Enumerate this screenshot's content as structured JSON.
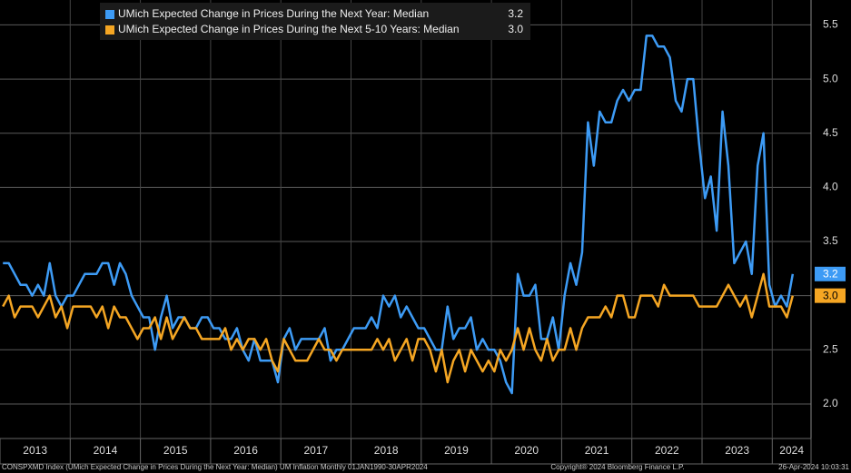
{
  "chart_data": {
    "type": "line",
    "categories": [
      "2013",
      null,
      null,
      null,
      null,
      null,
      null,
      null,
      null,
      null,
      null,
      null,
      "2014",
      null,
      null,
      null,
      null,
      null,
      null,
      null,
      null,
      null,
      null,
      null,
      "2015",
      null,
      null,
      null,
      null,
      null,
      null,
      null,
      null,
      null,
      null,
      null,
      "2016",
      null,
      null,
      null,
      null,
      null,
      null,
      null,
      null,
      null,
      null,
      null,
      "2017",
      null,
      null,
      null,
      null,
      null,
      null,
      null,
      null,
      null,
      null,
      null,
      "2018",
      null,
      null,
      null,
      null,
      null,
      null,
      null,
      null,
      null,
      null,
      null,
      "2019",
      null,
      null,
      null,
      null,
      null,
      null,
      null,
      null,
      null,
      null,
      null,
      "2020",
      null,
      null,
      null,
      null,
      null,
      null,
      null,
      null,
      null,
      null,
      null,
      "2021",
      null,
      null,
      null,
      null,
      null,
      null,
      null,
      null,
      null,
      null,
      null,
      "2022",
      null,
      null,
      null,
      null,
      null,
      null,
      null,
      null,
      null,
      null,
      null,
      "2023",
      null,
      null,
      null,
      null,
      null,
      null,
      null,
      null,
      null,
      null,
      null,
      "2024",
      null,
      null,
      null
    ],
    "series": [
      {
        "name": "UMich Expected Change in Prices During the Next Year: Median",
        "last_label": "3.2",
        "color": "#3d9bf5",
        "tag_text_color": "#ffffff",
        "values": [
          3.3,
          3.3,
          3.2,
          3.1,
          3.1,
          3.0,
          3.1,
          3.0,
          3.3,
          3.0,
          2.9,
          3.0,
          3.0,
          3.1,
          3.2,
          3.2,
          3.2,
          3.3,
          3.3,
          3.1,
          3.3,
          3.2,
          3.0,
          2.9,
          2.8,
          2.8,
          2.5,
          2.8,
          3.0,
          2.7,
          2.8,
          2.8,
          2.7,
          2.7,
          2.8,
          2.8,
          2.7,
          2.7,
          2.6,
          2.6,
          2.7,
          2.5,
          2.4,
          2.6,
          2.4,
          2.4,
          2.4,
          2.2,
          2.6,
          2.7,
          2.5,
          2.6,
          2.6,
          2.6,
          2.6,
          2.7,
          2.4,
          2.5,
          2.5,
          2.6,
          2.7,
          2.7,
          2.7,
          2.8,
          2.7,
          3.0,
          2.9,
          3.0,
          2.8,
          2.9,
          2.8,
          2.7,
          2.7,
          2.6,
          2.5,
          2.5,
          2.9,
          2.6,
          2.7,
          2.7,
          2.8,
          2.5,
          2.6,
          2.5,
          2.5,
          2.4,
          2.2,
          2.1,
          3.2,
          3.0,
          3.0,
          3.1,
          2.6,
          2.6,
          2.8,
          2.5,
          3.0,
          3.3,
          3.1,
          3.4,
          4.6,
          4.2,
          4.7,
          4.6,
          4.6,
          4.8,
          4.9,
          4.8,
          4.9,
          4.9,
          5.4,
          5.4,
          5.3,
          5.3,
          5.2,
          4.8,
          4.7,
          5.0,
          5.0,
          4.4,
          3.9,
          4.1,
          3.6,
          4.7,
          4.2,
          3.3,
          3.4,
          3.5,
          3.2,
          4.2,
          4.5,
          3.1,
          2.9,
          3.0,
          2.9,
          3.2
        ]
      },
      {
        "name": "UMich Expected Change in Prices During the Next 5-10 Years: Median",
        "last_label": "3.0",
        "color": "#f5a623",
        "tag_text_color": "#000000",
        "values": [
          2.9,
          3.0,
          2.8,
          2.9,
          2.9,
          2.9,
          2.8,
          2.9,
          3.0,
          2.8,
          2.9,
          2.7,
          2.9,
          2.9,
          2.9,
          2.9,
          2.8,
          2.9,
          2.7,
          2.9,
          2.8,
          2.8,
          2.7,
          2.6,
          2.7,
          2.7,
          2.8,
          2.6,
          2.8,
          2.6,
          2.7,
          2.8,
          2.7,
          2.7,
          2.6,
          2.6,
          2.6,
          2.6,
          2.7,
          2.5,
          2.6,
          2.5,
          2.6,
          2.6,
          2.5,
          2.6,
          2.4,
          2.3,
          2.6,
          2.5,
          2.4,
          2.4,
          2.4,
          2.5,
          2.6,
          2.5,
          2.5,
          2.4,
          2.5,
          2.5,
          2.5,
          2.5,
          2.5,
          2.5,
          2.6,
          2.5,
          2.6,
          2.4,
          2.5,
          2.6,
          2.4,
          2.6,
          2.6,
          2.5,
          2.3,
          2.5,
          2.2,
          2.4,
          2.5,
          2.3,
          2.5,
          2.4,
          2.3,
          2.4,
          2.3,
          2.5,
          2.4,
          2.5,
          2.7,
          2.5,
          2.7,
          2.5,
          2.4,
          2.6,
          2.4,
          2.5,
          2.5,
          2.7,
          2.5,
          2.7,
          2.8,
          2.8,
          2.8,
          2.9,
          2.8,
          3.0,
          3.0,
          2.8,
          2.8,
          3.0,
          3.0,
          3.0,
          2.9,
          3.1,
          3.0,
          3.0,
          3.0,
          3.0,
          3.0,
          2.9,
          2.9,
          2.9,
          2.9,
          3.0,
          3.1,
          3.0,
          2.9,
          3.0,
          2.8,
          3.0,
          3.2,
          2.9,
          2.9,
          2.9,
          2.8,
          3.0
        ]
      }
    ],
    "ylim": [
      1.79,
      5.73
    ],
    "yticks": [
      {
        "value": 2,
        "label": "2.0"
      },
      2.5,
      {
        "value": 3,
        "label": "3.0"
      },
      3.5,
      {
        "value": 4,
        "label": "4.0"
      },
      4.5,
      {
        "value": 5,
        "label": "5.0"
      },
      5.5
    ],
    "grid": true,
    "legend": "top-left",
    "footer": {
      "left": "CONSPXMD Index (UMich Expected Change in Prices During the Next Year: Median) UM Inflation  Monthly 01JAN1990-30APR2024",
      "center": "Copyright® 2024 Bloomberg Finance L.P.",
      "right": "26-Apr-2024 10:03:31"
    }
  }
}
